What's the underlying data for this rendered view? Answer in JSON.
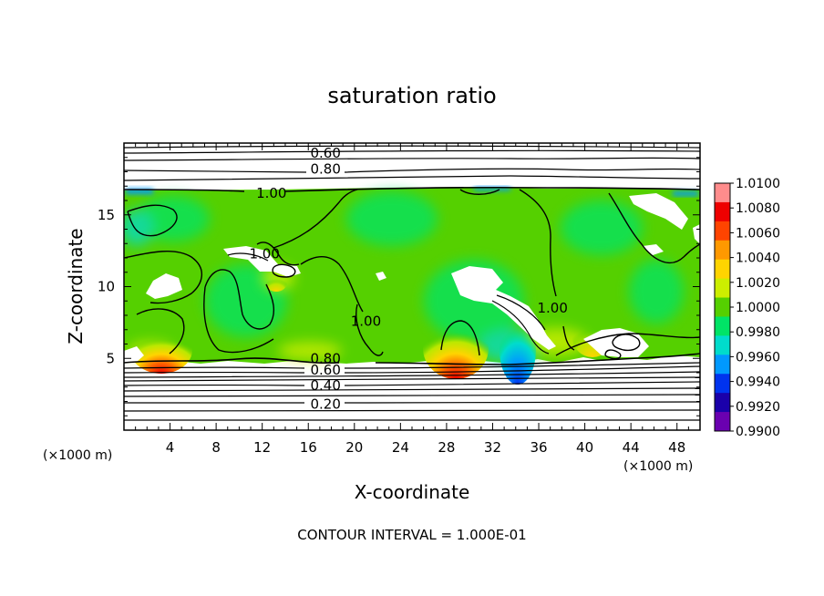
{
  "chart_data": {
    "type": "heatmap",
    "title": "saturation ratio",
    "xlabel": "X-coordinate",
    "ylabel": "Z-coordinate",
    "x_unit": "(×1000 m)",
    "z_unit": "(×1000 m)",
    "xlim": [
      0,
      50
    ],
    "ylim": [
      0,
      20
    ],
    "x_ticks": [
      4,
      8,
      12,
      16,
      20,
      24,
      28,
      32,
      36,
      40,
      44,
      48
    ],
    "y_ticks": [
      5,
      10,
      15
    ],
    "contour_interval_text": "CONTOUR INTERVAL = 1.000E-01",
    "contour_labels": [
      {
        "text": "0.60",
        "x": 17.5,
        "z": 19.3
      },
      {
        "text": "0.80",
        "x": 17.5,
        "z": 18.2
      },
      {
        "text": "1.00",
        "x": 12.8,
        "z": 16.5
      },
      {
        "text": "1.00",
        "x": 12.2,
        "z": 12.3
      },
      {
        "text": "1.00",
        "x": 21.0,
        "z": 7.6
      },
      {
        "text": "1.00",
        "x": 37.2,
        "z": 8.5
      },
      {
        "text": "0.80",
        "x": 17.5,
        "z": 5.0
      },
      {
        "text": "0.60",
        "x": 17.5,
        "z": 4.2
      },
      {
        "text": "0.40",
        "x": 17.5,
        "z": 3.1
      },
      {
        "text": "0.20",
        "x": 17.5,
        "z": 1.8
      }
    ],
    "colorbar": {
      "min": 0.99,
      "max": 1.01,
      "labels": [
        "1.0100",
        "1.0080",
        "1.0060",
        "1.0040",
        "1.0020",
        "1.0000",
        "0.9980",
        "0.9960",
        "0.9940",
        "0.9920",
        "0.9900"
      ],
      "colors": [
        "#ff8c8c",
        "#ee0000",
        "#ff4400",
        "#ff9900",
        "#ffd400",
        "#ccee00",
        "#55d000",
        "#00e466",
        "#00dccc",
        "#0099ff",
        "#0033ee",
        "#1a00aa",
        "#6a00b0"
      ]
    },
    "field_regions": {
      "supersaturated_cores_red": [
        {
          "x": 4.5,
          "z": 5.3
        },
        {
          "x": 28.5,
          "z": 5.3
        }
      ],
      "subsaturated_cores_blue": [
        {
          "x": 34.0,
          "z": 5.0
        }
      ],
      "saturated_layer_z_range": [
        4.8,
        16.8
      ]
    }
  }
}
